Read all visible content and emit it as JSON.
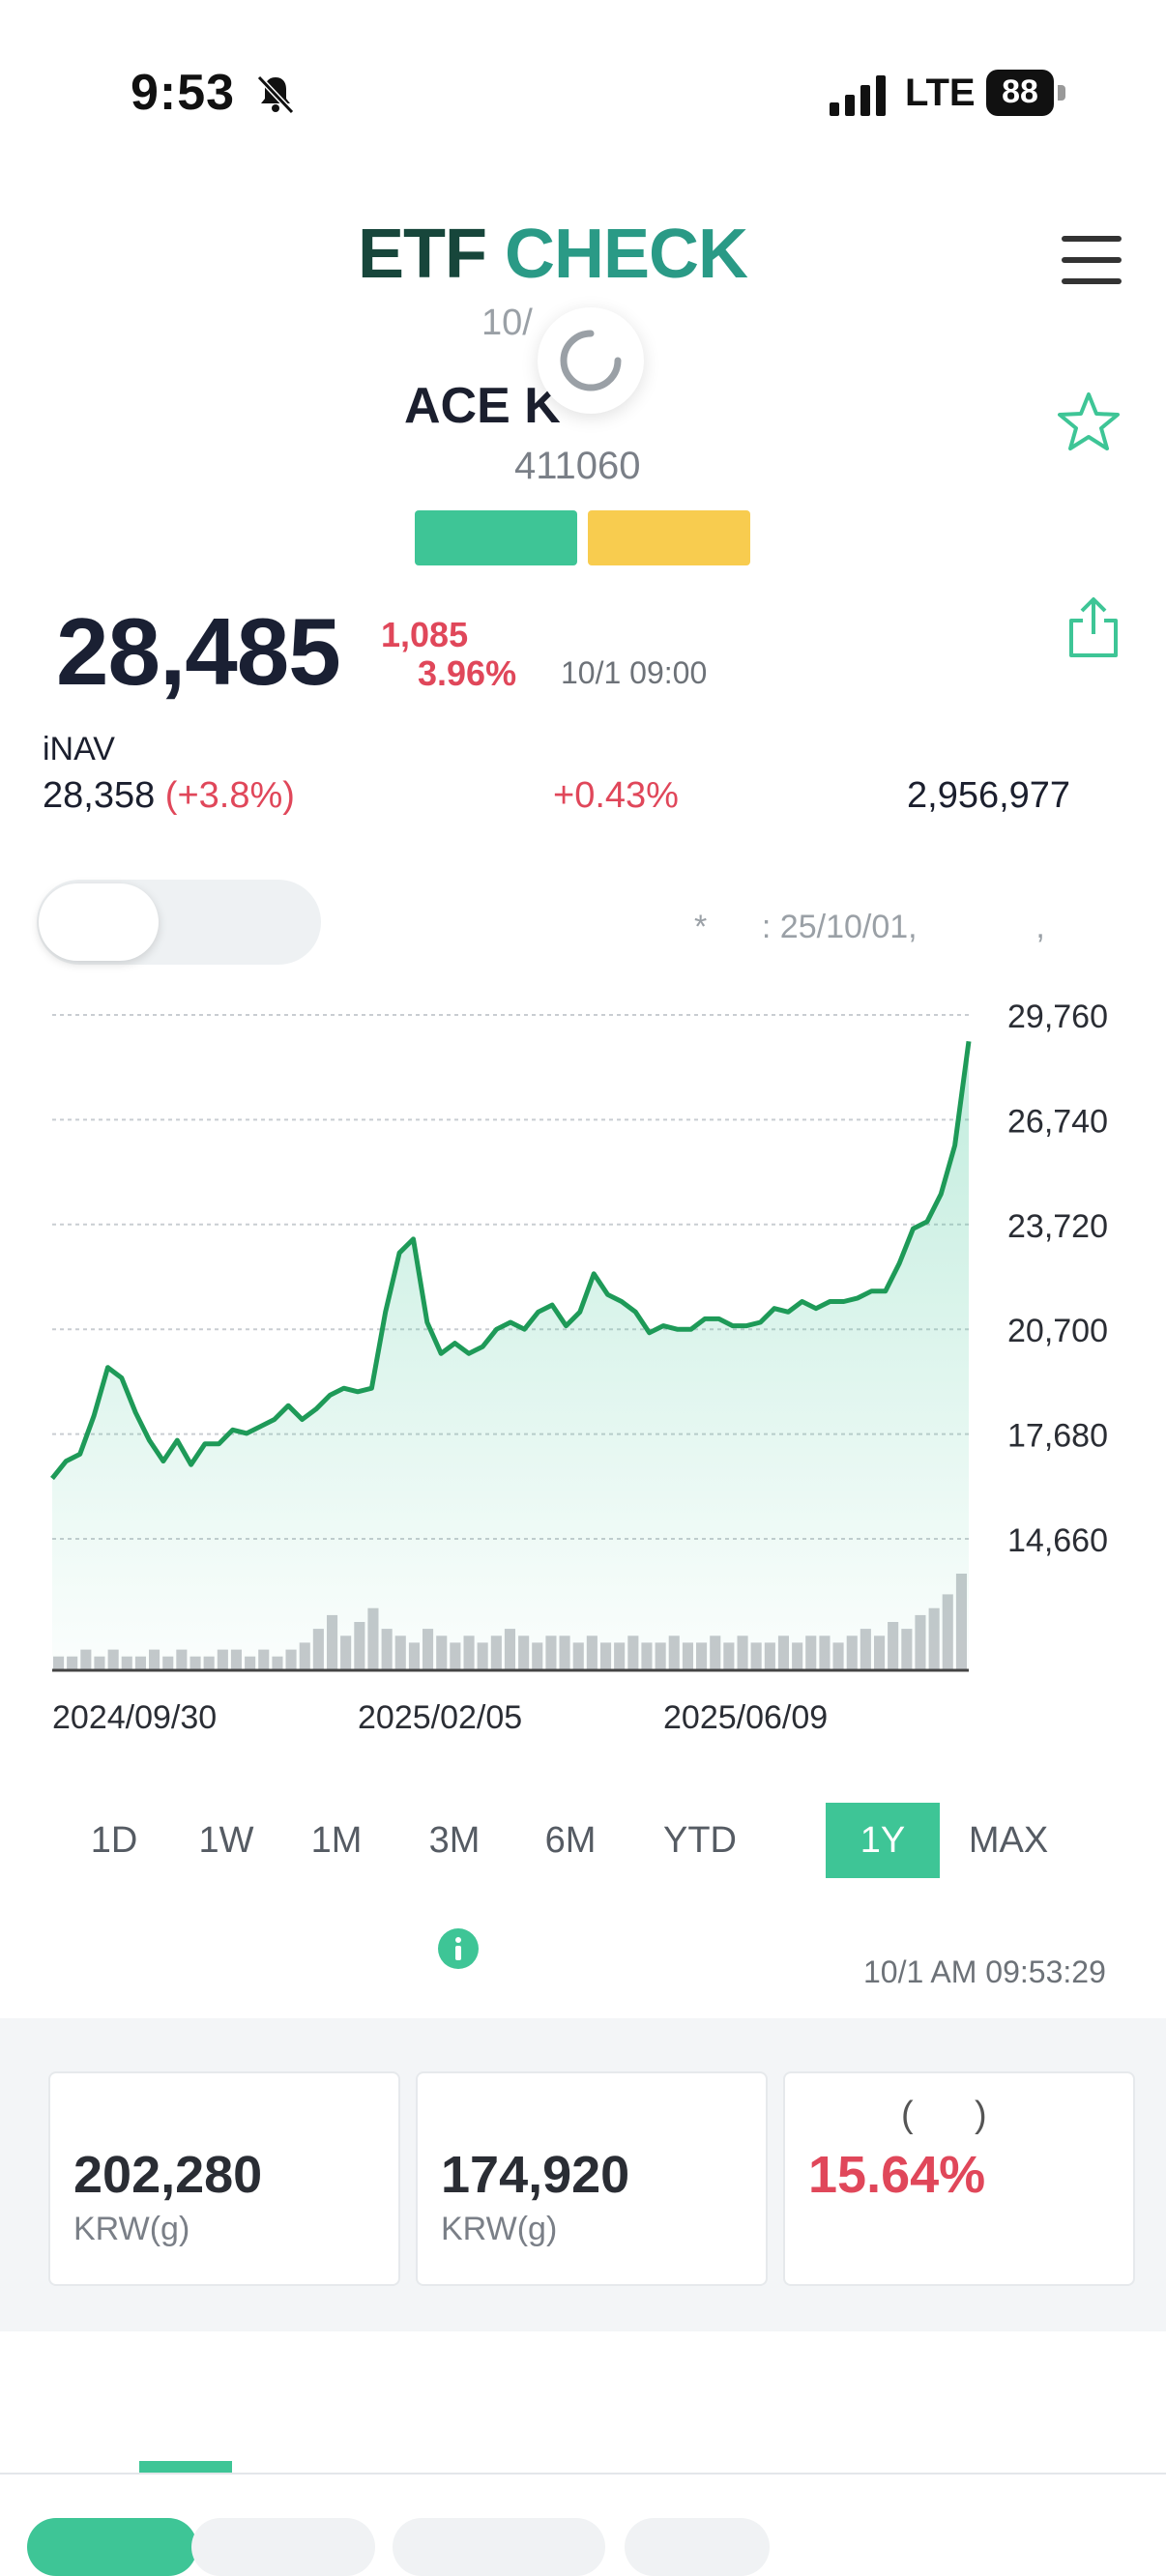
{
  "status_bar": {
    "time": "9:53",
    "network": "LTE",
    "battery": "88"
  },
  "header": {
    "logo_part1": "ETF",
    "logo_part2": "CHECK"
  },
  "etf": {
    "date_fragment": "10/",
    "name": "ACE K",
    "code": "411060",
    "price": "28,485",
    "change_abs": "1,085",
    "change_pct": "3.96%",
    "price_time": "10/1 09:00",
    "inav_label": "iNAV",
    "inav_value": "28,358",
    "inav_change": "(+3.8%)",
    "premium": "+0.43%",
    "volume": "2,956,977",
    "note": "*      : 25/10/01,             ,"
  },
  "chart_data": {
    "type": "line",
    "x_tick_labels": [
      "2024/09/30",
      "2025/02/05",
      "2025/06/09"
    ],
    "y_tick_labels": [
      "29,760",
      "26,740",
      "23,720",
      "20,700",
      "17,680",
      "14,660"
    ],
    "ylim": [
      14660,
      29760
    ],
    "grid": true,
    "series": [
      {
        "values": [
          16400,
          16900,
          17100,
          18200,
          19600,
          19300,
          18300,
          17500,
          16900,
          17500,
          16800,
          17400,
          17400,
          17800,
          17700,
          17900,
          18100,
          18500,
          18100,
          18400,
          18800,
          19000,
          18900,
          19000,
          21200,
          22900,
          23300,
          20900,
          20000,
          20300,
          20000,
          20200,
          20700,
          20900,
          20700,
          21200,
          21400,
          20800,
          21200,
          22300,
          21700,
          21500,
          21200,
          20600,
          20800,
          20700,
          20700,
          21000,
          21000,
          20800,
          20800,
          20900,
          21300,
          21200,
          21500,
          21300,
          21500,
          21500,
          21600,
          21800,
          21800,
          22600,
          23600,
          23800,
          24600,
          26000,
          29000
        ]
      },
      {
        "name": "volume",
        "values": [
          2,
          2,
          3,
          2,
          3,
          2,
          2,
          3,
          2,
          3,
          2,
          2,
          3,
          3,
          2,
          3,
          2,
          3,
          4,
          6,
          8,
          5,
          7,
          9,
          6,
          5,
          4,
          6,
          5,
          4,
          5,
          4,
          5,
          6,
          5,
          4,
          5,
          5,
          4,
          5,
          4,
          4,
          5,
          4,
          4,
          5,
          4,
          4,
          5,
          4,
          5,
          4,
          4,
          5,
          4,
          5,
          5,
          4,
          5,
          6,
          5,
          7,
          6,
          8,
          9,
          11,
          14
        ]
      }
    ]
  },
  "periods": [
    "1D",
    "1W",
    "1M",
    "3M",
    "6M",
    "YTD",
    "1Y",
    "MAX"
  ],
  "active_period": "1Y",
  "updated_time": "10/1 AM 09:53:29",
  "stats": [
    {
      "value": "202,280",
      "unit": "KRW(g)"
    },
    {
      "value": "174,920",
      "unit": "KRW(g)"
    },
    {
      "header": "(      )",
      "value": "15.64%"
    }
  ],
  "colors": {
    "accent": "#3ec596",
    "line": "#1e9a58",
    "up": "#e0475a",
    "tag_yellow": "#f8cc4f"
  }
}
